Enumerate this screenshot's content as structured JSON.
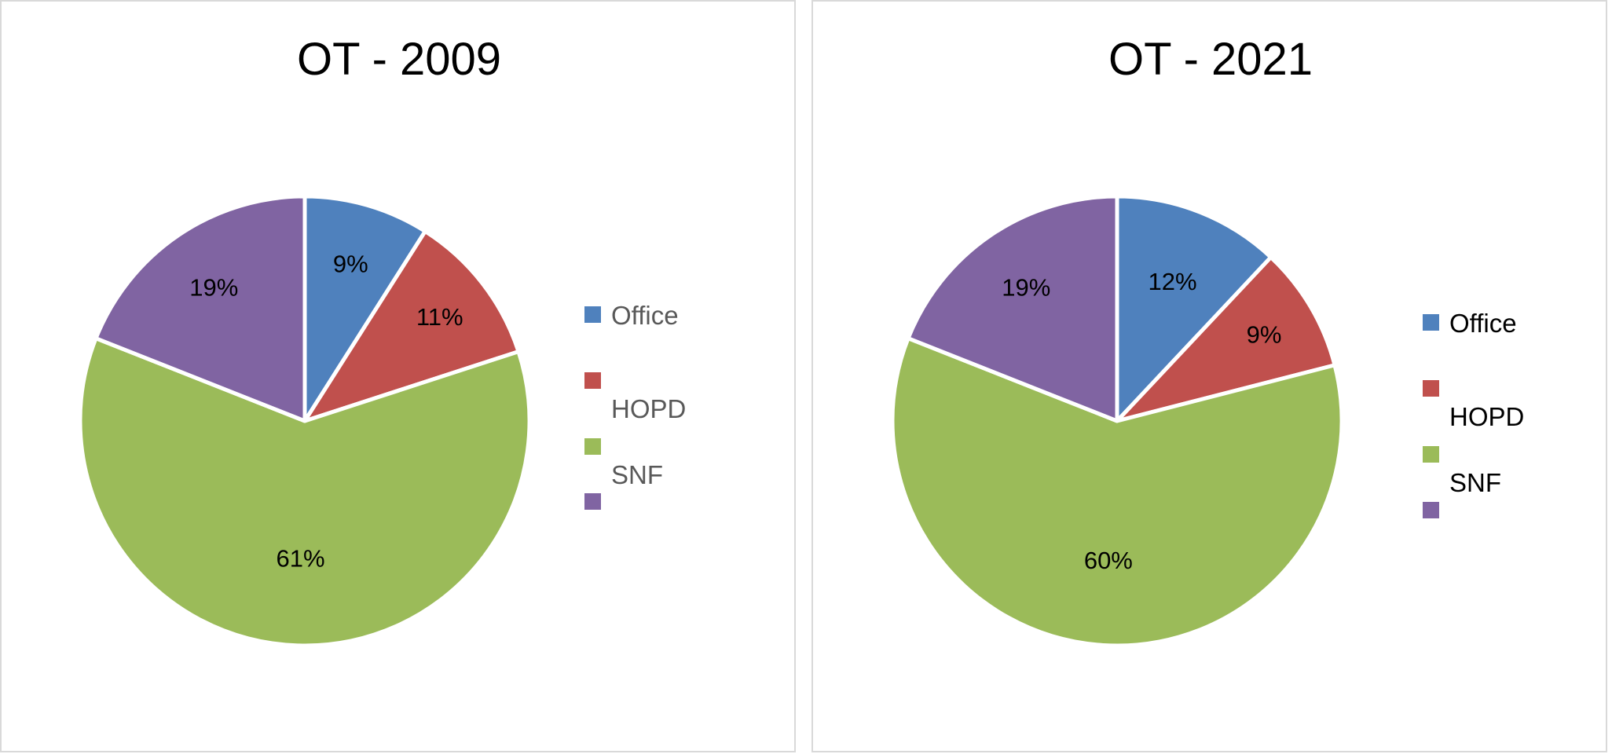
{
  "chart_data": [
    {
      "type": "pie",
      "title": "OT - 2009",
      "categories": [
        "Office",
        "HOPD",
        "SNF",
        ""
      ],
      "values": [
        9,
        11,
        61,
        19
      ],
      "labels": [
        "9%",
        "11%",
        "61%",
        "19%"
      ],
      "colors": [
        "#4F81BD",
        "#C0504D",
        "#9BBB59",
        "#8064A2"
      ],
      "legend": "right",
      "legend_text_color": "#595959"
    },
    {
      "type": "pie",
      "title": "OT - 2021",
      "categories": [
        "Office",
        "HOPD",
        "SNF",
        ""
      ],
      "values": [
        12,
        9,
        60,
        19
      ],
      "labels": [
        "12%",
        "9%",
        "60%",
        "19%"
      ],
      "colors": [
        "#4F81BD",
        "#C0504D",
        "#9BBB59",
        "#8064A2"
      ],
      "legend": "right",
      "legend_text_color": "#000000"
    }
  ]
}
